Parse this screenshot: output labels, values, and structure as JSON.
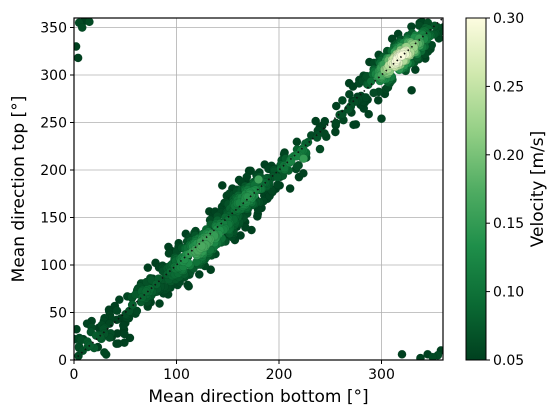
{
  "chart_data": {
    "type": "scatter",
    "title": "",
    "xlabel": "Mean direction bottom [°]",
    "ylabel": "Mean direction top [°]",
    "xlim": [
      0,
      360
    ],
    "ylim": [
      0,
      360
    ],
    "xticks": [
      "0",
      "100",
      "200",
      "300"
    ],
    "yticks": [
      "0",
      "50",
      "100",
      "150",
      "200",
      "250",
      "300",
      "350"
    ],
    "grid": true,
    "reference_line": {
      "style": "dotted",
      "from": [
        0,
        0
      ],
      "to": [
        360,
        360
      ]
    },
    "colorbar": {
      "label": "Velocity [m/s]",
      "range": [
        0.05,
        0.3
      ],
      "ticks": [
        "0.05",
        "0.10",
        "0.15",
        "0.20",
        "0.25",
        "0.30"
      ],
      "colormap": [
        "#00401f",
        "#0b6b34",
        "#1f8f4a",
        "#51ad63",
        "#93cf85",
        "#cfe8ad",
        "#fdfce0"
      ]
    },
    "clusters": [
      {
        "center": [
          125,
          120
        ],
        "spread_along": 38,
        "spread_across": 9,
        "count": 260,
        "velocity_peak": 0.17
      },
      {
        "center": [
          170,
          172
        ],
        "spread_along": 22,
        "spread_across": 8,
        "count": 140,
        "velocity_peak": 0.14
      },
      {
        "center": [
          318,
          318
        ],
        "spread_along": 28,
        "spread_across": 8,
        "count": 230,
        "velocity_peak": 0.3
      },
      {
        "center": [
          215,
          212
        ],
        "spread_along": 25,
        "spread_across": 6,
        "count": 60,
        "velocity_peak": 0.12
      },
      {
        "center": [
          70,
          72
        ],
        "spread_along": 30,
        "spread_across": 7,
        "count": 80,
        "velocity_peak": 0.09
      },
      {
        "center": [
          20,
          20
        ],
        "spread_along": 18,
        "spread_across": 12,
        "count": 50,
        "velocity_peak": 0.08
      },
      {
        "center": [
          265,
          265
        ],
        "spread_along": 15,
        "spread_across": 8,
        "count": 25,
        "velocity_peak": 0.07
      }
    ],
    "points": [
      {
        "x": 5,
        "y": 355,
        "v": 0.06
      },
      {
        "x": 10,
        "y": 357,
        "v": 0.05
      },
      {
        "x": 15,
        "y": 356,
        "v": 0.06
      },
      {
        "x": 2,
        "y": 330,
        "v": 0.05
      },
      {
        "x": 4,
        "y": 318,
        "v": 0.05
      },
      {
        "x": 8,
        "y": 350,
        "v": 0.06
      },
      {
        "x": 355,
        "y": 5,
        "v": 0.06
      },
      {
        "x": 358,
        "y": 10,
        "v": 0.05
      },
      {
        "x": 350,
        "y": 3,
        "v": 0.06
      },
      {
        "x": 345,
        "y": 6,
        "v": 0.05
      },
      {
        "x": 320,
        "y": 6,
        "v": 0.05
      },
      {
        "x": 338,
        "y": 2,
        "v": 0.05
      },
      {
        "x": 224,
        "y": 212,
        "v": 0.15
      },
      {
        "x": 180,
        "y": 190,
        "v": 0.16
      },
      {
        "x": 240,
        "y": 222,
        "v": 0.06
      },
      {
        "x": 255,
        "y": 240,
        "v": 0.05
      },
      {
        "x": 275,
        "y": 248,
        "v": 0.05
      },
      {
        "x": 300,
        "y": 254,
        "v": 0.05
      }
    ]
  }
}
